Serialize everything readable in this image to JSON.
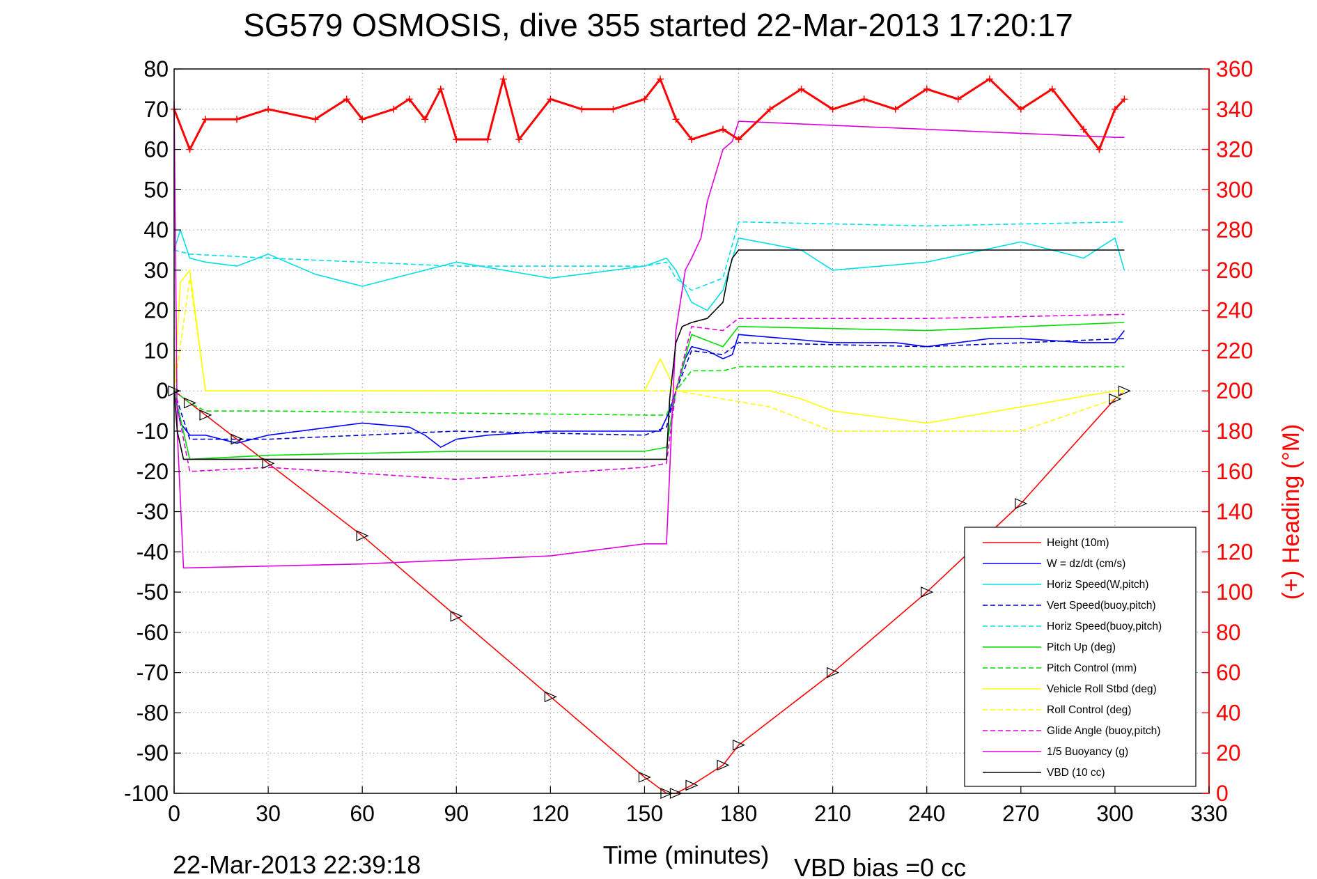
{
  "title": "SG579 OSMOSIS, dive 355 started 22-Mar-2013 17:20:17",
  "footer_left": "22-Mar-2013 22:39:18",
  "footer_right": "VBD bias =0 cc",
  "xlabel": "Time (minutes)",
  "ylabel_right": "(+) Heading (°M)",
  "chart_data": {
    "type": "line",
    "xlim": [
      0,
      330
    ],
    "ylim": [
      -100,
      80
    ],
    "ylim_right": [
      0,
      360
    ],
    "xticks": [
      0,
      30,
      60,
      90,
      120,
      150,
      180,
      210,
      240,
      270,
      300,
      330
    ],
    "yticks": [
      80,
      70,
      60,
      50,
      40,
      30,
      20,
      10,
      0,
      -10,
      -20,
      -30,
      -40,
      -50,
      -60,
      -70,
      -80,
      -90,
      -100
    ],
    "yticks_right": [
      360,
      340,
      320,
      300,
      280,
      260,
      240,
      220,
      200,
      180,
      160,
      140,
      120,
      100,
      80,
      60,
      40,
      20,
      0
    ],
    "grid": true,
    "legend_position": "lower-right",
    "series": [
      {
        "name": "Height (10m)",
        "color": "#ff0000",
        "style": "solid",
        "x": [
          0,
          5,
          10,
          20,
          30,
          60,
          90,
          120,
          150,
          157,
          160,
          165,
          175,
          180,
          210,
          240,
          270,
          300,
          303
        ],
        "y": [
          0,
          -3,
          -6,
          -12,
          -18,
          -36,
          -56,
          -76,
          -96,
          -100,
          -100,
          -98,
          -93,
          -88,
          -70,
          -50,
          -28,
          -2,
          0
        ]
      },
      {
        "name": "W = dz/dt (cm/s)",
        "color": "#0000ff",
        "style": "solid",
        "x": [
          0,
          2,
          5,
          10,
          20,
          30,
          60,
          75,
          80,
          85,
          90,
          100,
          120,
          150,
          155,
          158,
          160,
          163,
          165,
          170,
          175,
          178,
          180,
          210,
          230,
          240,
          260,
          270,
          290,
          300,
          303
        ],
        "y": [
          0,
          -8,
          -11,
          -11,
          -13,
          -11,
          -8,
          -9,
          -11,
          -14,
          -12,
          -11,
          -10,
          -10,
          -10,
          -5,
          0,
          8,
          11,
          10,
          8,
          9,
          14,
          12,
          12,
          11,
          13,
          13,
          12,
          12,
          15
        ]
      },
      {
        "name": "Horiz Speed(W,pitch)",
        "color": "#00e0e6",
        "style": "solid",
        "x": [
          0,
          2,
          5,
          10,
          20,
          30,
          45,
          60,
          90,
          120,
          150,
          157,
          160,
          165,
          170,
          175,
          180,
          200,
          210,
          240,
          270,
          290,
          300,
          303
        ],
        "y": [
          35,
          40,
          33,
          32,
          31,
          34,
          29,
          26,
          32,
          28,
          31,
          33,
          30,
          22,
          20,
          25,
          38,
          35,
          30,
          32,
          37,
          33,
          38,
          30
        ]
      },
      {
        "name": "Vert Speed(buoy,pitch)",
        "color": "#0000cc",
        "style": "dashed",
        "x": [
          0,
          5,
          30,
          90,
          150,
          157,
          160,
          165,
          175,
          180,
          240,
          303
        ],
        "y": [
          0,
          -12,
          -12,
          -10,
          -11,
          -9,
          0,
          10,
          9,
          12,
          11,
          13
        ]
      },
      {
        "name": "Horiz Speed(buoy,pitch)",
        "color": "#00e0e6",
        "style": "dashed",
        "x": [
          0,
          5,
          30,
          90,
          150,
          157,
          160,
          165,
          175,
          180,
          240,
          303
        ],
        "y": [
          35,
          34,
          33,
          31,
          31,
          32,
          28,
          25,
          28,
          42,
          41,
          42
        ]
      },
      {
        "name": "Pitch Up (deg)",
        "color": "#00dd00",
        "style": "solid",
        "x": [
          0,
          5,
          30,
          90,
          150,
          157,
          160,
          165,
          175,
          180,
          240,
          303
        ],
        "y": [
          0,
          -17,
          -16,
          -15,
          -15,
          -14,
          0,
          14,
          11,
          16,
          15,
          17
        ]
      },
      {
        "name": "Pitch Control (mm)",
        "color": "#00dd00",
        "style": "dashed",
        "x": [
          0,
          5,
          10,
          30,
          150,
          157,
          160,
          165,
          175,
          180,
          240,
          303
        ],
        "y": [
          0,
          -3,
          -5,
          -5,
          -6,
          -6,
          0,
          5,
          5,
          6,
          6,
          6
        ]
      },
      {
        "name": "Vehicle Roll Stbd (deg)",
        "color": "#ffff00",
        "style": "solid",
        "x": [
          0,
          2,
          5,
          10,
          150,
          155,
          160,
          170,
          190,
          200,
          210,
          240,
          270,
          300,
          303
        ],
        "y": [
          0,
          27,
          30,
          0,
          0,
          8,
          0,
          0,
          0,
          -2,
          -5,
          -8,
          -4,
          0,
          0
        ]
      },
      {
        "name": "Roll Control (deg)",
        "color": "#ffff00",
        "style": "dashed",
        "x": [
          0,
          5,
          10,
          150,
          160,
          190,
          210,
          240,
          270,
          300,
          303
        ],
        "y": [
          0,
          28,
          0,
          0,
          0,
          -4,
          -10,
          -10,
          -10,
          -2,
          0
        ]
      },
      {
        "name": "Glide Angle (buoy,pitch)",
        "color": "#dd00dd",
        "style": "dashed",
        "x": [
          0,
          5,
          30,
          90,
          150,
          157,
          160,
          165,
          175,
          180,
          240,
          303
        ],
        "y": [
          0,
          -20,
          -19,
          -22,
          -19,
          -18,
          0,
          16,
          15,
          18,
          18,
          19
        ]
      },
      {
        "name": "1/5 Buoyancy (g)",
        "color": "#dd00dd",
        "style": "solid",
        "x": [
          0,
          1,
          3,
          60,
          120,
          150,
          157,
          160,
          163,
          165,
          168,
          170,
          175,
          178,
          180,
          240,
          300,
          303
        ],
        "y": [
          72,
          -10,
          -44,
          -43,
          -41,
          -38,
          -38,
          15,
          30,
          33,
          38,
          47,
          60,
          62,
          67,
          65,
          63,
          63
        ]
      },
      {
        "name": "VBD (10 cc)",
        "color": "#000000",
        "style": "solid",
        "x": [
          0,
          1,
          3,
          155,
          157,
          158,
          160,
          162,
          165,
          170,
          175,
          177,
          178,
          180,
          303
        ],
        "y": [
          0,
          -10,
          -17,
          -17,
          -17,
          -2,
          12,
          16,
          17,
          18,
          22,
          30,
          33,
          35,
          35
        ]
      }
    ],
    "heading_series": {
      "name": "(+) Heading",
      "color": "#ff0000",
      "marker": "+",
      "x": [
        0,
        5,
        10,
        20,
        30,
        45,
        55,
        60,
        70,
        75,
        80,
        85,
        90,
        100,
        105,
        110,
        120,
        130,
        140,
        150,
        155,
        160,
        165,
        175,
        180,
        190,
        200,
        210,
        220,
        230,
        240,
        250,
        260,
        270,
        280,
        290,
        295,
        300,
        303
      ],
      "y": [
        340,
        320,
        335,
        335,
        340,
        335,
        345,
        335,
        340,
        345,
        335,
        350,
        325,
        325,
        355,
        325,
        345,
        340,
        340,
        345,
        355,
        335,
        325,
        330,
        325,
        340,
        350,
        340,
        345,
        340,
        350,
        345,
        355,
        340,
        350,
        330,
        320,
        340,
        345
      ]
    }
  }
}
